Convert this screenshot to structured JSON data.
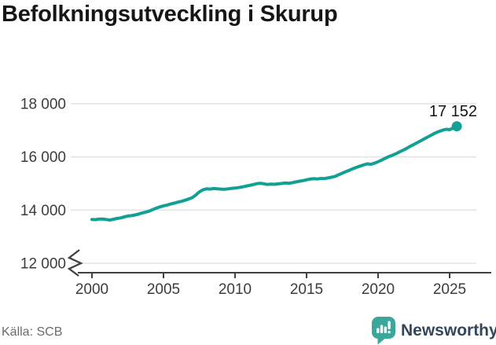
{
  "header": {
    "title": "Befolkningsutveckling i Skurup"
  },
  "footer": {
    "source": "Källa: SCB",
    "brand": "Newsworthy"
  },
  "colors": {
    "line": "#13a094",
    "logo": "#3ba69c",
    "grid": "#e3e3e3",
    "axis": "#404040",
    "tick_text": "#3c3c3c",
    "title": "#161616",
    "end_label": "#141414",
    "muted": "#6b6b6b",
    "brand_text": "#33475b"
  },
  "chart_data": {
    "type": "line",
    "title": "Befolkningsutveckling i Skurup",
    "xlabel": "",
    "ylabel": "",
    "grid": "horizontal",
    "axis_break": true,
    "xlim": [
      1999.5,
      2026.2
    ],
    "ylim": [
      12000,
      18000
    ],
    "x_ticks": [
      2000,
      2005,
      2010,
      2015,
      2020,
      2025
    ],
    "x_tick_labels": [
      "2000",
      "2005",
      "2010",
      "2015",
      "2020",
      "2025"
    ],
    "y_ticks": [
      12000,
      14000,
      16000,
      18000
    ],
    "y_tick_labels": [
      "12 000",
      "14 000",
      "16 000",
      "18 000"
    ],
    "end_label": "17 152",
    "end_value": 17152,
    "source": "SCB",
    "series": [
      {
        "name": "Befolkning",
        "x": [
          2000,
          2000.25,
          2000.5,
          2000.75,
          2001,
          2001.25,
          2001.5,
          2001.75,
          2002,
          2002.25,
          2002.5,
          2002.75,
          2003,
          2003.25,
          2003.5,
          2003.75,
          2004,
          2004.25,
          2004.5,
          2004.75,
          2005,
          2005.25,
          2005.5,
          2005.75,
          2006,
          2006.25,
          2006.5,
          2006.75,
          2007,
          2007.25,
          2007.5,
          2007.75,
          2008,
          2008.25,
          2008.5,
          2008.75,
          2009,
          2009.25,
          2009.5,
          2009.75,
          2010,
          2010.25,
          2010.5,
          2010.75,
          2011,
          2011.25,
          2011.5,
          2011.75,
          2012,
          2012.25,
          2012.5,
          2012.75,
          2013,
          2013.25,
          2013.5,
          2013.75,
          2014,
          2014.25,
          2014.5,
          2014.75,
          2015,
          2015.25,
          2015.5,
          2015.75,
          2016,
          2016.25,
          2016.5,
          2016.75,
          2017,
          2017.25,
          2017.5,
          2017.75,
          2018,
          2018.25,
          2018.5,
          2018.75,
          2019,
          2019.25,
          2019.5,
          2019.75,
          2020,
          2020.25,
          2020.5,
          2020.75,
          2021,
          2021.25,
          2021.5,
          2021.75,
          2022,
          2022.25,
          2022.5,
          2022.75,
          2023,
          2023.25,
          2023.5,
          2023.75,
          2024,
          2024.25,
          2024.5,
          2024.75,
          2025,
          2025.25,
          2025.5
        ],
        "y": [
          13650,
          13640,
          13665,
          13660,
          13645,
          13625,
          13655,
          13685,
          13705,
          13740,
          13775,
          13790,
          13815,
          13850,
          13890,
          13925,
          13960,
          14020,
          14075,
          14120,
          14160,
          14190,
          14230,
          14260,
          14300,
          14330,
          14370,
          14415,
          14465,
          14560,
          14680,
          14760,
          14800,
          14790,
          14810,
          14800,
          14790,
          14780,
          14800,
          14815,
          14830,
          14845,
          14870,
          14900,
          14925,
          14960,
          14990,
          15005,
          14990,
          14965,
          14980,
          14970,
          14985,
          15000,
          15020,
          15010,
          15030,
          15060,
          15085,
          15110,
          15140,
          15165,
          15180,
          15170,
          15190,
          15185,
          15210,
          15235,
          15270,
          15330,
          15390,
          15445,
          15500,
          15560,
          15610,
          15655,
          15700,
          15740,
          15725,
          15765,
          15820,
          15880,
          15950,
          16010,
          16060,
          16120,
          16190,
          16250,
          16320,
          16400,
          16470,
          16540,
          16610,
          16685,
          16760,
          16830,
          16900,
          16955,
          17005,
          17040,
          17025,
          17090,
          17152
        ]
      }
    ]
  }
}
